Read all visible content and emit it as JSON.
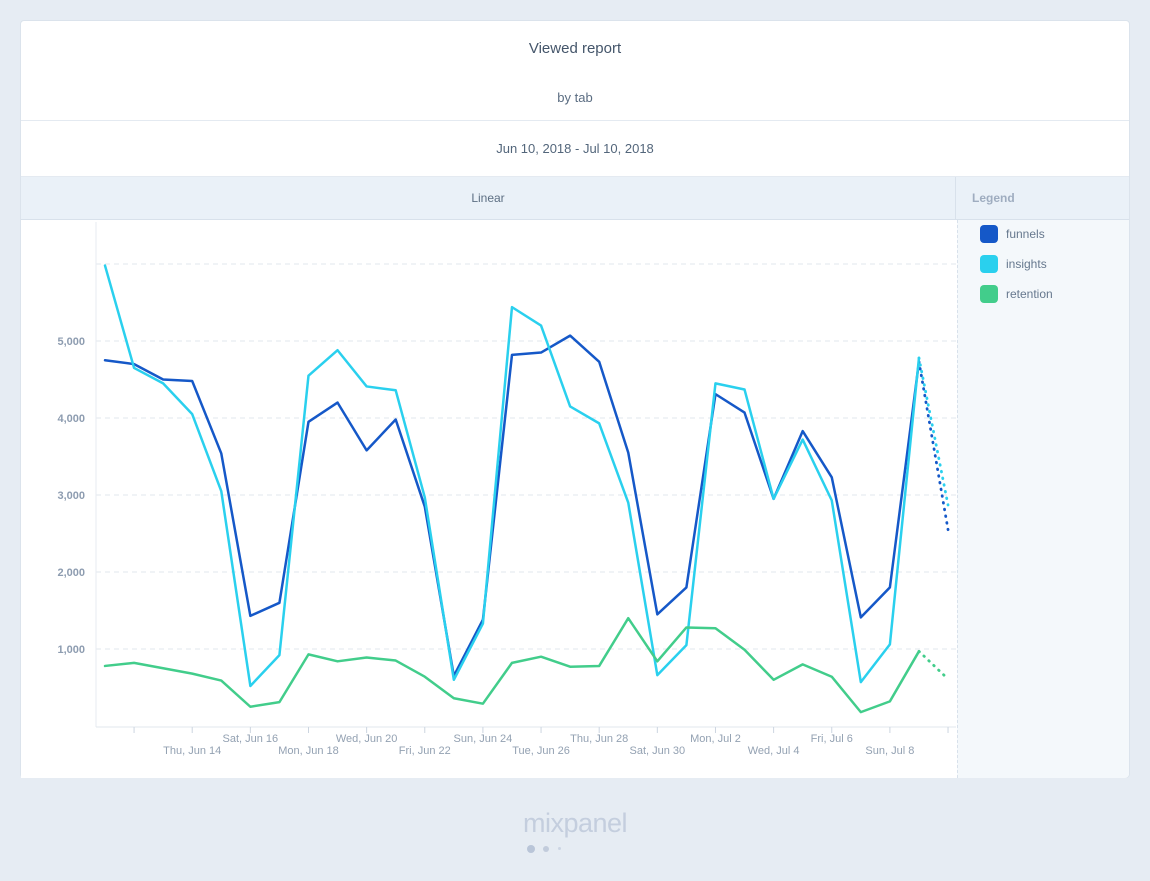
{
  "report": {
    "title": "Viewed report",
    "subtitle": "by tab",
    "date_range": "Jun 10, 2018 - Jul 10, 2018",
    "chart_type_label": "Linear",
    "legend_title": "Legend"
  },
  "legend": {
    "items": [
      {
        "label": "funnels",
        "color": "#1558c8"
      },
      {
        "label": "insights",
        "color": "#2ad0ee"
      },
      {
        "label": "retention",
        "color": "#42cd8b"
      }
    ]
  },
  "footer": {
    "logo_text": "mixpanel"
  },
  "chart_data": {
    "type": "line",
    "title": "Viewed report by tab",
    "legend_position": "right",
    "grid": "horizontal-dashed",
    "last_segment_style": "dotted",
    "x_dates": [
      "Jun 11",
      "Jun 12",
      "Jun 13",
      "Jun 14",
      "Jun 15",
      "Jun 16",
      "Jun 17",
      "Jun 18",
      "Jun 19",
      "Jun 20",
      "Jun 21",
      "Jun 22",
      "Jun 23",
      "Jun 24",
      "Jun 25",
      "Jun 26",
      "Jun 27",
      "Jun 28",
      "Jun 29",
      "Jun 30",
      "Jul 1",
      "Jul 2",
      "Jul 3",
      "Jul 4",
      "Jul 5",
      "Jul 6",
      "Jul 7",
      "Jul 8",
      "Jul 9",
      "Jul 10"
    ],
    "series": [
      {
        "name": "funnels",
        "color": "#1558c8",
        "values": [
          4750,
          4700,
          4500,
          4480,
          3540,
          1430,
          1600,
          3950,
          4200,
          3580,
          3980,
          2850,
          650,
          1380,
          4820,
          4850,
          5070,
          4730,
          3550,
          1450,
          1800,
          4310,
          4070,
          2950,
          3830,
          3230,
          1410,
          1800,
          4730,
          2550
        ]
      },
      {
        "name": "insights",
        "color": "#2ad0ee",
        "values": [
          5980,
          4650,
          4450,
          4050,
          3050,
          520,
          920,
          4550,
          4880,
          4410,
          4360,
          2970,
          600,
          1330,
          5440,
          5200,
          4150,
          3930,
          2900,
          660,
          1050,
          4450,
          4370,
          2950,
          3720,
          2930,
          570,
          1060,
          4780,
          2870
        ]
      },
      {
        "name": "retention",
        "color": "#42cd8b",
        "values": [
          780,
          820,
          750,
          680,
          590,
          250,
          310,
          930,
          840,
          890,
          850,
          640,
          360,
          290,
          820,
          900,
          770,
          780,
          1400,
          840,
          1280,
          1270,
          990,
          600,
          800,
          640,
          180,
          320,
          970,
          610
        ]
      }
    ],
    "yaxis": {
      "min": 0,
      "max": 6200,
      "ticks": [
        {
          "value": 1000,
          "label": "1,000"
        },
        {
          "value": 2000,
          "label": "2,000"
        },
        {
          "value": 3000,
          "label": "3,000"
        },
        {
          "value": 4000,
          "label": "4,000"
        },
        {
          "value": 5000,
          "label": "5,000"
        },
        {
          "value": 6000,
          "label": ""
        }
      ]
    },
    "xaxis": {
      "tick_every_days": 2,
      "labels": [
        {
          "index": 3,
          "label": "Thu, Jun 14",
          "row": "lower"
        },
        {
          "index": 5,
          "label": "Sat, Jun 16",
          "row": "upper"
        },
        {
          "index": 7,
          "label": "Mon, Jun 18",
          "row": "lower"
        },
        {
          "index": 9,
          "label": "Wed, Jun 20",
          "row": "upper"
        },
        {
          "index": 11,
          "label": "Fri, Jun 22",
          "row": "lower"
        },
        {
          "index": 13,
          "label": "Sun, Jun 24",
          "row": "upper"
        },
        {
          "index": 15,
          "label": "Tue, Jun 26",
          "row": "lower"
        },
        {
          "index": 17,
          "label": "Thu, Jun 28",
          "row": "upper"
        },
        {
          "index": 19,
          "label": "Sat, Jun 30",
          "row": "lower"
        },
        {
          "index": 21,
          "label": "Mon, Jul 2",
          "row": "upper"
        },
        {
          "index": 23,
          "label": "Wed, Jul 4",
          "row": "lower"
        },
        {
          "index": 25,
          "label": "Fri, Jul 6",
          "row": "upper"
        },
        {
          "index": 27,
          "label": "Sun, Jul 8",
          "row": "lower"
        }
      ]
    }
  }
}
